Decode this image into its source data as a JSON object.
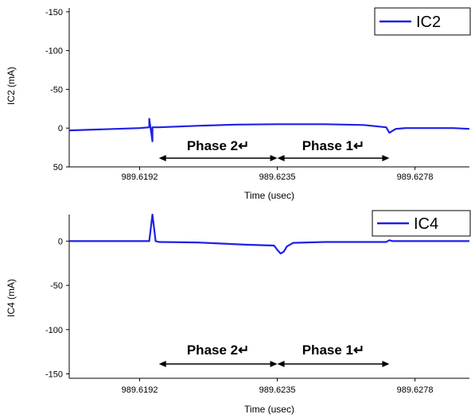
{
  "chart_data": [
    {
      "type": "line",
      "xlabel": "Time (usec)",
      "ylabel": "IC2 (mA)",
      "ylim": [
        50,
        -155
      ],
      "y_inverted": true,
      "yticks": [
        -150,
        -100,
        -50,
        0,
        50
      ],
      "xlim": [
        989.617,
        989.6295
      ],
      "xticks": [
        989.6192,
        989.6235,
        989.6278
      ],
      "grid": false,
      "legend": {
        "placement": "top-right",
        "entries": [
          "IC2"
        ]
      },
      "series": [
        {
          "name": "IC2",
          "color": "#1f1fe6",
          "x": [
            989.617,
            989.6192,
            989.6195,
            989.6195,
            989.6196,
            989.6196,
            989.6198,
            989.621,
            989.6222,
            989.6235,
            989.625,
            989.6262,
            989.6269,
            989.627,
            989.6272,
            989.6275,
            989.628,
            989.629,
            989.6295
          ],
          "y": [
            3,
            0,
            -1,
            -12,
            17,
            -1,
            -1,
            -3,
            -4.5,
            -5,
            -5,
            -4,
            -1,
            6,
            1,
            0,
            0,
            0,
            1
          ]
        }
      ],
      "annotations": [
        {
          "label": "Phase 2↵",
          "from": 989.6198,
          "to": 989.6235
        },
        {
          "label": "Phase 1↵",
          "from": 989.6235,
          "to": 989.627
        }
      ]
    },
    {
      "type": "line",
      "xlabel": "Time (usec)",
      "ylabel": "IC4 (mA)",
      "ylim": [
        -155,
        30
      ],
      "yticks": [
        0,
        -50,
        -100,
        -150
      ],
      "xlim": [
        989.617,
        989.6295
      ],
      "xticks": [
        989.6192,
        989.6235,
        989.6278
      ],
      "grid": false,
      "legend": {
        "placement": "top-right",
        "entries": [
          "IC4"
        ]
      },
      "series": [
        {
          "name": "IC4",
          "color": "#1f1fe6",
          "x": [
            989.617,
            989.6192,
            989.6195,
            989.6196,
            989.6197,
            989.6198,
            989.621,
            989.6225,
            989.6234,
            989.6235,
            989.6236,
            989.6237,
            989.6238,
            989.624,
            989.625,
            989.626,
            989.6269,
            989.627,
            989.6271,
            989.628,
            989.6295
          ],
          "y": [
            0,
            0,
            0,
            30,
            0,
            -1,
            -1.5,
            -4,
            -5,
            -10,
            -14,
            -12,
            -6,
            -2,
            -1,
            -1,
            -1,
            1,
            0,
            0,
            0
          ]
        }
      ],
      "annotations": [
        {
          "label": "Phase 2↵",
          "from": 989.6198,
          "to": 989.6235
        },
        {
          "label": "Phase 1↵",
          "from": 989.6235,
          "to": 989.627
        }
      ]
    }
  ]
}
